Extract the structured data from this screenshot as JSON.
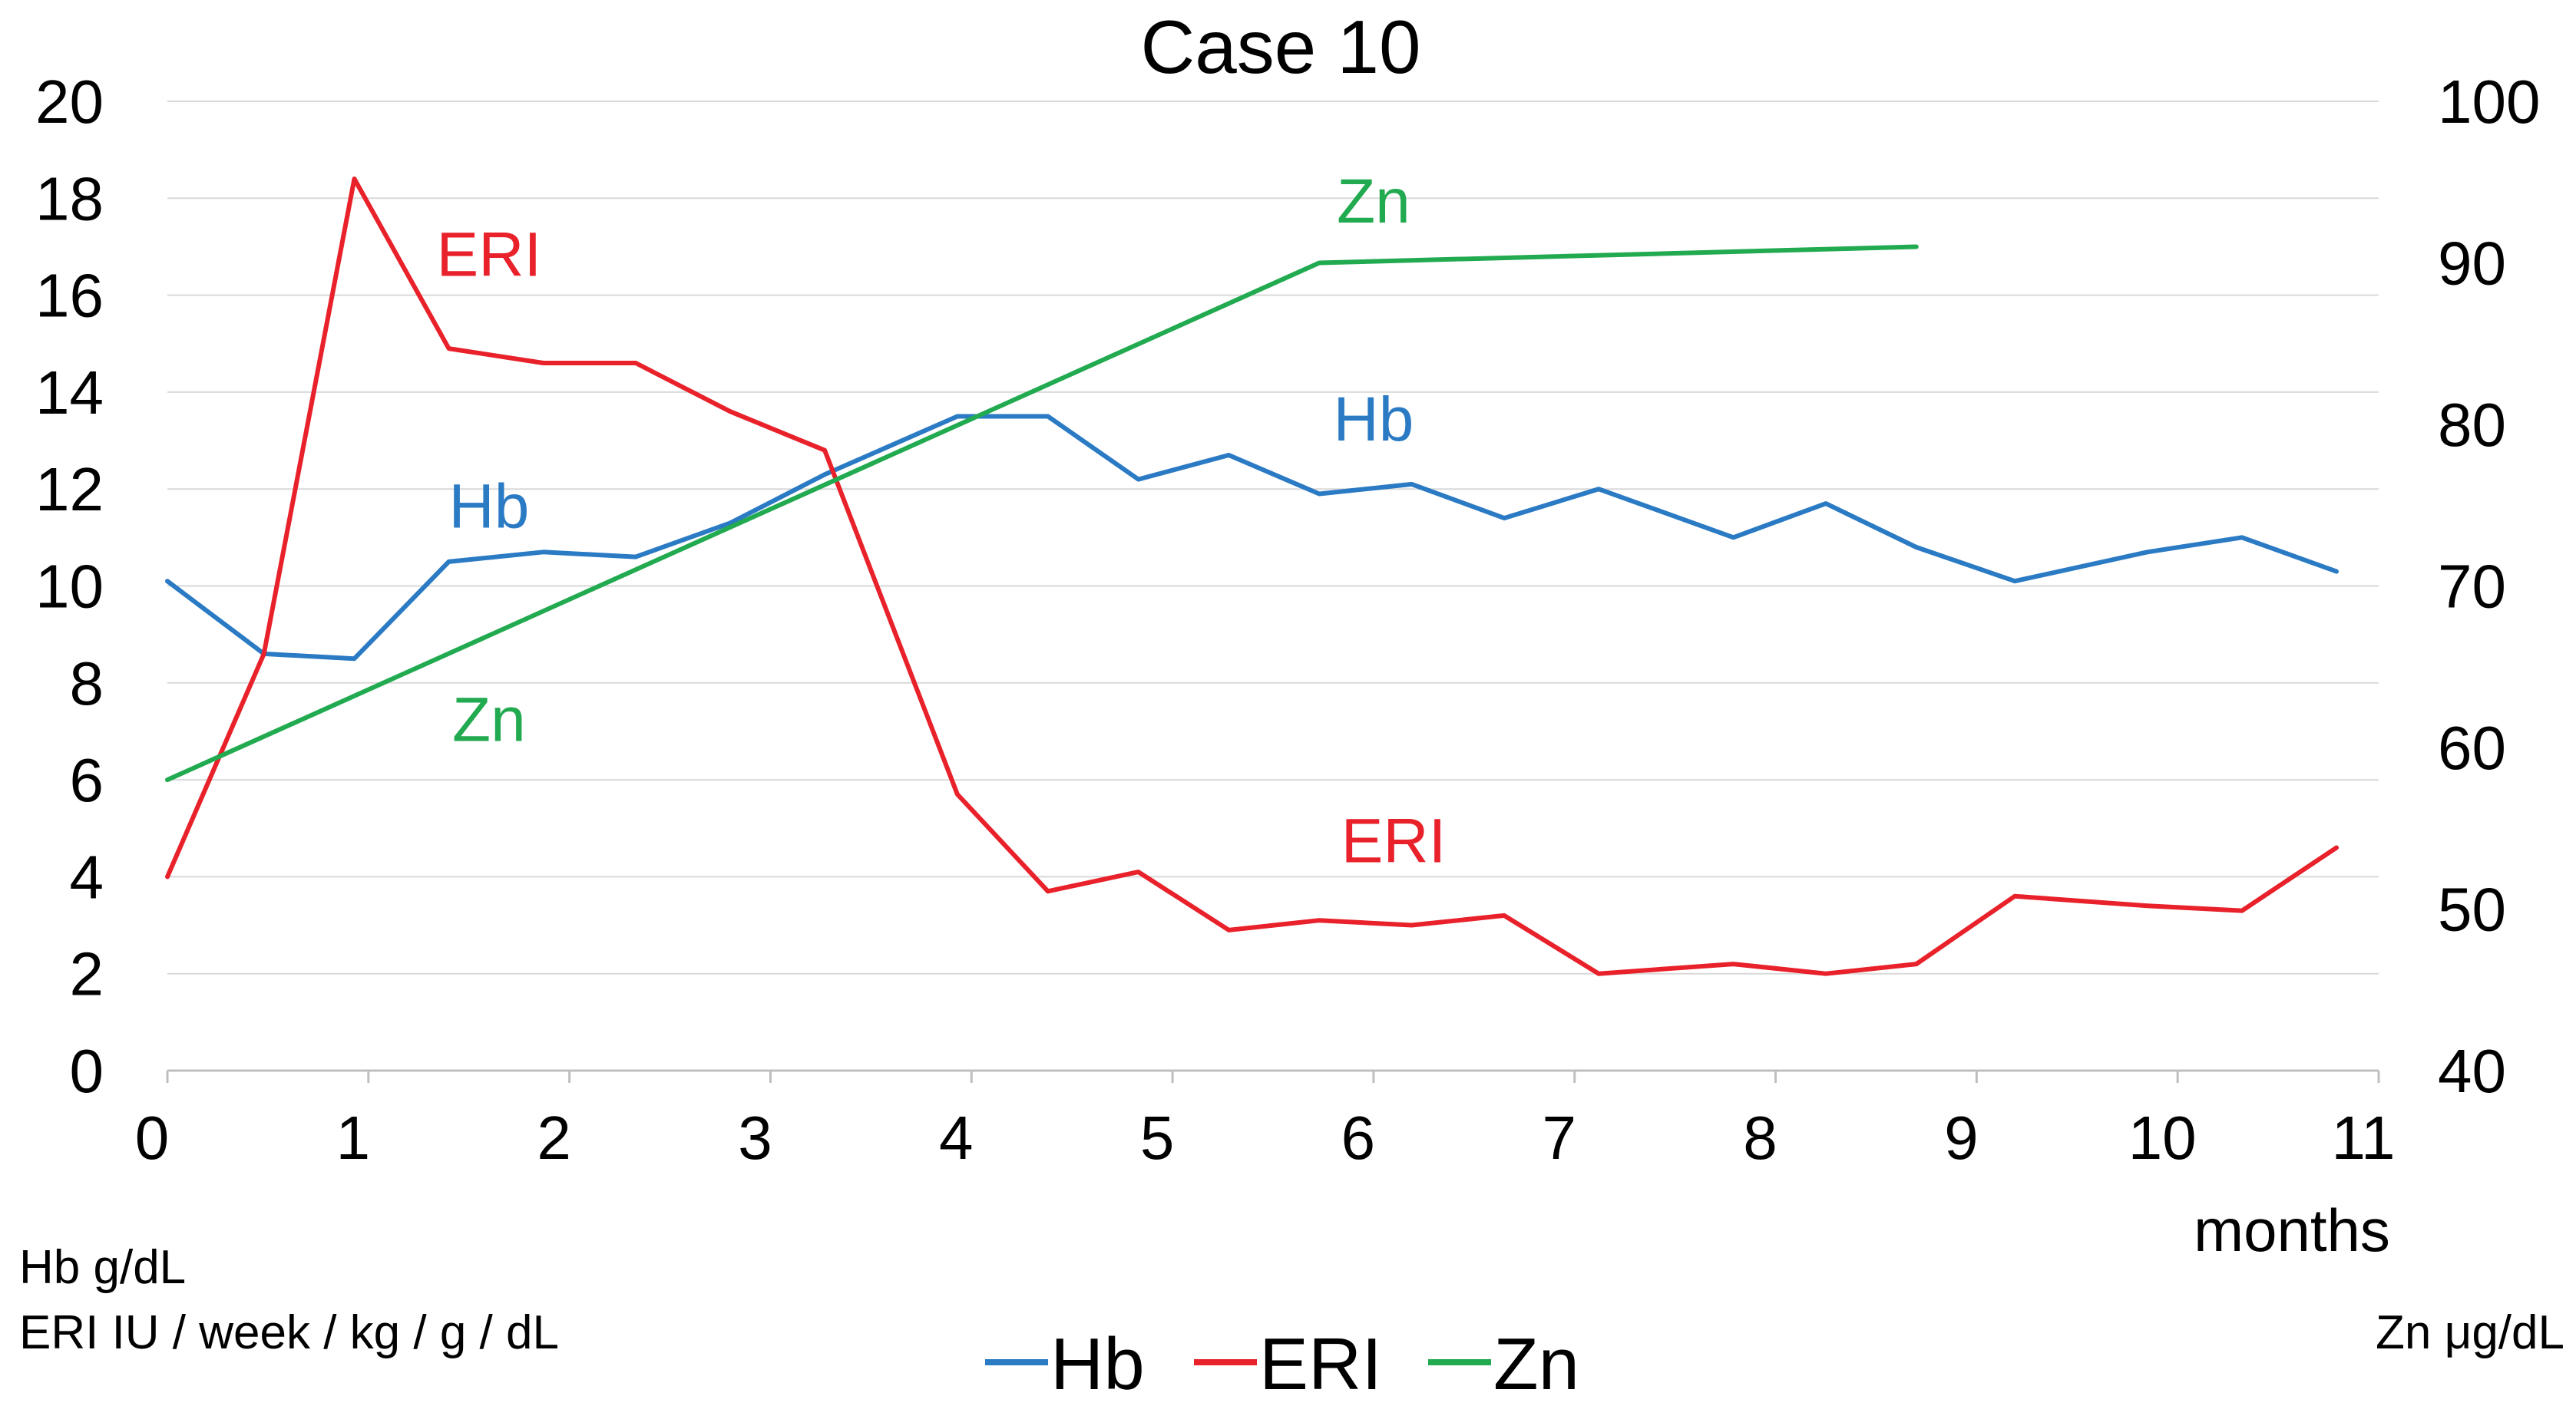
{
  "chart_data": {
    "type": "line",
    "title": "Case 10",
    "x": {
      "label": "months",
      "lim": [
        0,
        11
      ],
      "ticks": [
        "0",
        "1",
        "2",
        "3",
        "4",
        "5",
        "6",
        "7",
        "8",
        "9",
        "10",
        "11"
      ]
    },
    "y_left": {
      "lim": [
        0,
        20
      ],
      "ticks": [
        "0",
        "2",
        "4",
        "6",
        "8",
        "10",
        "12",
        "14",
        "16",
        "18",
        "20"
      ],
      "unit_labels": [
        "Hb g/dL",
        "ERI IU / week  / kg / g / dL"
      ]
    },
    "y_right": {
      "lim": [
        40,
        100
      ],
      "ticks": [
        "40",
        "50",
        "60",
        "70",
        "80",
        "90",
        "100"
      ],
      "unit_label": "Zn μg/dL"
    },
    "grid": true,
    "series": [
      {
        "name": "Hb",
        "axis": "left",
        "color": "#2a7ac4",
        "points": [
          [
            0,
            10.1
          ],
          [
            0.48,
            8.6
          ],
          [
            0.93,
            8.5
          ],
          [
            1.4,
            10.5
          ],
          [
            1.87,
            10.7
          ],
          [
            2.33,
            10.6
          ],
          [
            2.8,
            11.3
          ],
          [
            3.27,
            12.3
          ],
          [
            3.93,
            13.5
          ],
          [
            4.38,
            13.5
          ],
          [
            4.83,
            12.2
          ],
          [
            5.28,
            12.7
          ],
          [
            5.73,
            11.9
          ],
          [
            6.19,
            12.1
          ],
          [
            6.65,
            11.4
          ],
          [
            7.12,
            12.0
          ],
          [
            7.79,
            11.0
          ],
          [
            8.25,
            11.7
          ],
          [
            8.7,
            10.8
          ],
          [
            9.19,
            10.1
          ],
          [
            9.85,
            10.7
          ],
          [
            10.32,
            11.0
          ],
          [
            10.79,
            10.3
          ]
        ]
      },
      {
        "name": "ERI",
        "axis": "left",
        "color": "#e8212a",
        "points": [
          [
            0,
            4.0
          ],
          [
            0.48,
            8.6
          ],
          [
            0.93,
            18.4
          ],
          [
            1.4,
            14.9
          ],
          [
            1.87,
            14.6
          ],
          [
            2.33,
            14.6
          ],
          [
            2.8,
            13.6
          ],
          [
            3.27,
            12.8
          ],
          [
            3.93,
            5.7
          ],
          [
            4.38,
            3.7
          ],
          [
            4.83,
            4.1
          ],
          [
            5.28,
            2.9
          ],
          [
            5.73,
            3.1
          ],
          [
            6.19,
            3.0
          ],
          [
            6.65,
            3.2
          ],
          [
            7.12,
            2.0
          ],
          [
            7.79,
            2.2
          ],
          [
            8.25,
            2.0
          ],
          [
            8.7,
            2.2
          ],
          [
            9.19,
            3.6
          ],
          [
            9.85,
            3.4
          ],
          [
            10.32,
            3.3
          ],
          [
            10.79,
            4.6
          ]
        ]
      },
      {
        "name": "Zn",
        "axis": "right",
        "color": "#22aa50",
        "points": [
          [
            0,
            58
          ],
          [
            5.73,
            90
          ],
          [
            8.7,
            91
          ]
        ]
      }
    ],
    "annotations": [
      {
        "text": "ERI",
        "series": "ERI",
        "x": 1.6,
        "y": 16.4
      },
      {
        "text": "Hb",
        "series": "Hb",
        "x": 1.6,
        "y": 11.2
      },
      {
        "text": "Zn",
        "series": "Zn",
        "x": 1.6,
        "y": 6.8
      },
      {
        "text": "Hb",
        "series": "Hb",
        "x": 6.0,
        "y": 13.0
      },
      {
        "text": "ERI",
        "series": "ERI",
        "x": 6.1,
        "y": 4.3
      },
      {
        "text": "Zn",
        "series": "Zn",
        "x": 6.0,
        "y": 17.5
      }
    ],
    "legend": {
      "position": "bottom-center",
      "entries": [
        "Hb",
        "ERI",
        "Zn"
      ]
    }
  }
}
